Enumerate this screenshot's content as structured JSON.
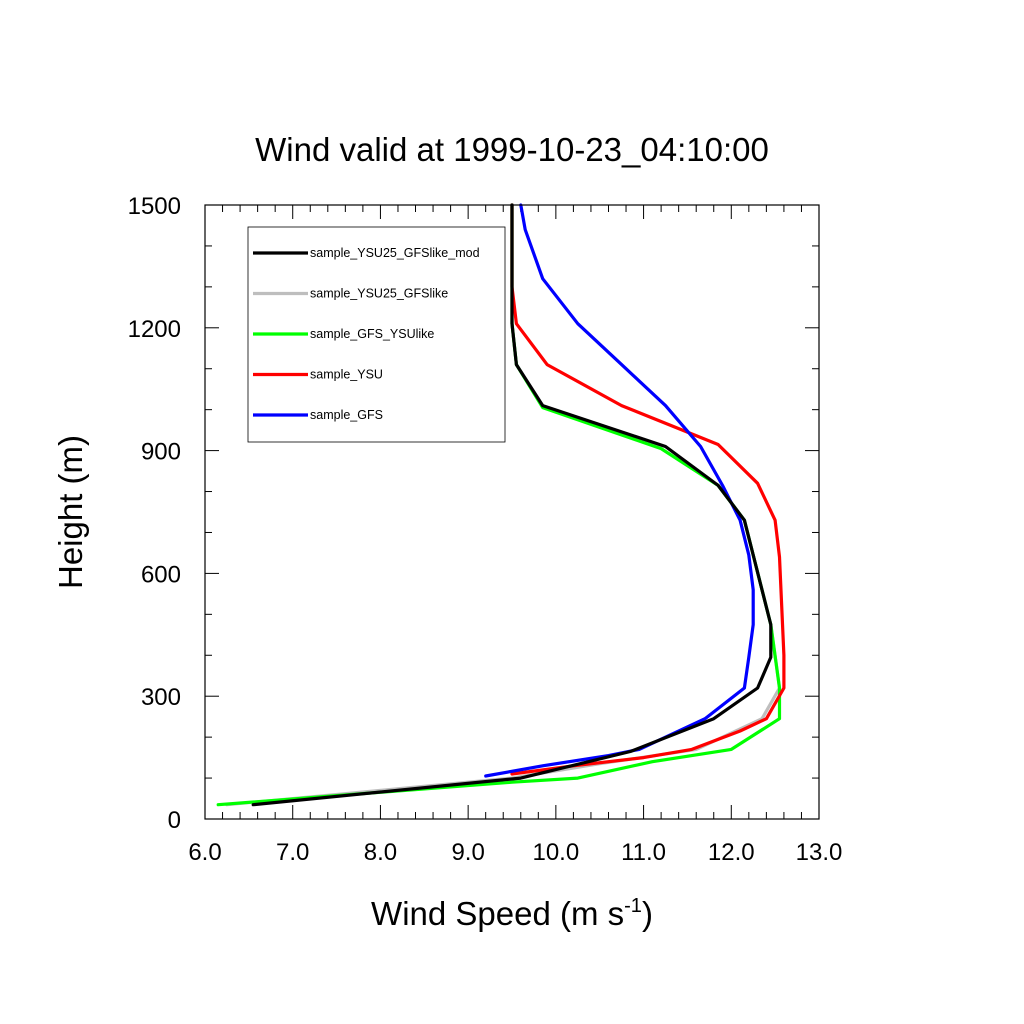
{
  "chart_data": {
    "type": "line",
    "title": "Wind valid at 1999-10-23_04:10:00",
    "xlabel": "Wind Speed (m s",
    "xlabel_superscript": "-1",
    "xlabel_suffix": ")",
    "ylabel": "Height (m)",
    "xlim": [
      6.0,
      13.0
    ],
    "ylim": [
      0,
      1500
    ],
    "x_ticks": [
      "6.0",
      "7.0",
      "8.0",
      "9.0",
      "10.0",
      "11.0",
      "12.0",
      "13.0"
    ],
    "y_ticks": [
      "0",
      "300",
      "600",
      "900",
      "1200",
      "1500"
    ],
    "legend_position": "top-left",
    "grid": false,
    "series": [
      {
        "name": "sample_YSU25_GFSlike_mod",
        "color": "#000000",
        "points": [
          [
            6.55,
            35
          ],
          [
            9.6,
            100
          ],
          [
            10.85,
            165
          ],
          [
            11.8,
            245
          ],
          [
            12.3,
            320
          ],
          [
            12.45,
            395
          ],
          [
            12.45,
            475
          ],
          [
            12.35,
            560
          ],
          [
            12.25,
            645
          ],
          [
            12.15,
            730
          ],
          [
            11.85,
            815
          ],
          [
            11.25,
            910
          ],
          [
            9.85,
            1010
          ],
          [
            9.55,
            1110
          ],
          [
            9.5,
            1210
          ],
          [
            9.5,
            1500
          ]
        ]
      },
      {
        "name": "sample_YSU25_GFSlike",
        "color": "#bebebe",
        "points": [
          [
            6.25,
            35
          ],
          [
            9.5,
            100
          ],
          [
            10.5,
            135
          ],
          [
            11.6,
            170
          ],
          [
            12.35,
            245
          ],
          [
            12.55,
            320
          ],
          [
            12.45,
            475
          ],
          [
            12.35,
            560
          ],
          [
            12.25,
            645
          ],
          [
            12.15,
            730
          ],
          [
            11.85,
            815
          ],
          [
            11.25,
            910
          ],
          [
            9.85,
            1010
          ],
          [
            9.55,
            1110
          ],
          [
            9.5,
            1210
          ],
          [
            9.5,
            1500
          ]
        ]
      },
      {
        "name": "sample_GFS_YSUlike",
        "color": "#00ff00",
        "points": [
          [
            6.15,
            35
          ],
          [
            9.5,
            90
          ],
          [
            10.25,
            100
          ],
          [
            11.1,
            140
          ],
          [
            12.0,
            170
          ],
          [
            12.55,
            245
          ],
          [
            12.55,
            320
          ],
          [
            12.45,
            475
          ],
          [
            12.35,
            560
          ],
          [
            12.25,
            645
          ],
          [
            12.15,
            730
          ],
          [
            11.85,
            815
          ],
          [
            11.2,
            905
          ],
          [
            9.85,
            1005
          ],
          [
            9.55,
            1110
          ],
          [
            9.5,
            1210
          ],
          [
            9.5,
            1500
          ]
        ]
      },
      {
        "name": "sample_YSU",
        "color": "#ff0000",
        "points": [
          [
            9.5,
            110
          ],
          [
            10.2,
            130
          ],
          [
            11.0,
            150
          ],
          [
            11.55,
            170
          ],
          [
            12.1,
            215
          ],
          [
            12.4,
            245
          ],
          [
            12.6,
            320
          ],
          [
            12.6,
            400
          ],
          [
            12.55,
            640
          ],
          [
            12.5,
            730
          ],
          [
            12.3,
            820
          ],
          [
            11.85,
            915
          ],
          [
            10.75,
            1010
          ],
          [
            9.9,
            1110
          ],
          [
            9.55,
            1210
          ],
          [
            9.5,
            1300
          ],
          [
            9.5,
            1500
          ]
        ]
      },
      {
        "name": "sample_GFS",
        "color": "#0000ff",
        "points": [
          [
            9.2,
            105
          ],
          [
            9.85,
            130
          ],
          [
            10.6,
            155
          ],
          [
            10.95,
            170
          ],
          [
            11.7,
            245
          ],
          [
            12.15,
            320
          ],
          [
            12.2,
            395
          ],
          [
            12.25,
            475
          ],
          [
            12.25,
            560
          ],
          [
            12.2,
            645
          ],
          [
            12.1,
            730
          ],
          [
            11.9,
            815
          ],
          [
            11.65,
            910
          ],
          [
            11.25,
            1010
          ],
          [
            10.75,
            1110
          ],
          [
            10.25,
            1210
          ],
          [
            9.85,
            1320
          ],
          [
            9.65,
            1440
          ],
          [
            9.6,
            1500
          ]
        ]
      }
    ]
  }
}
